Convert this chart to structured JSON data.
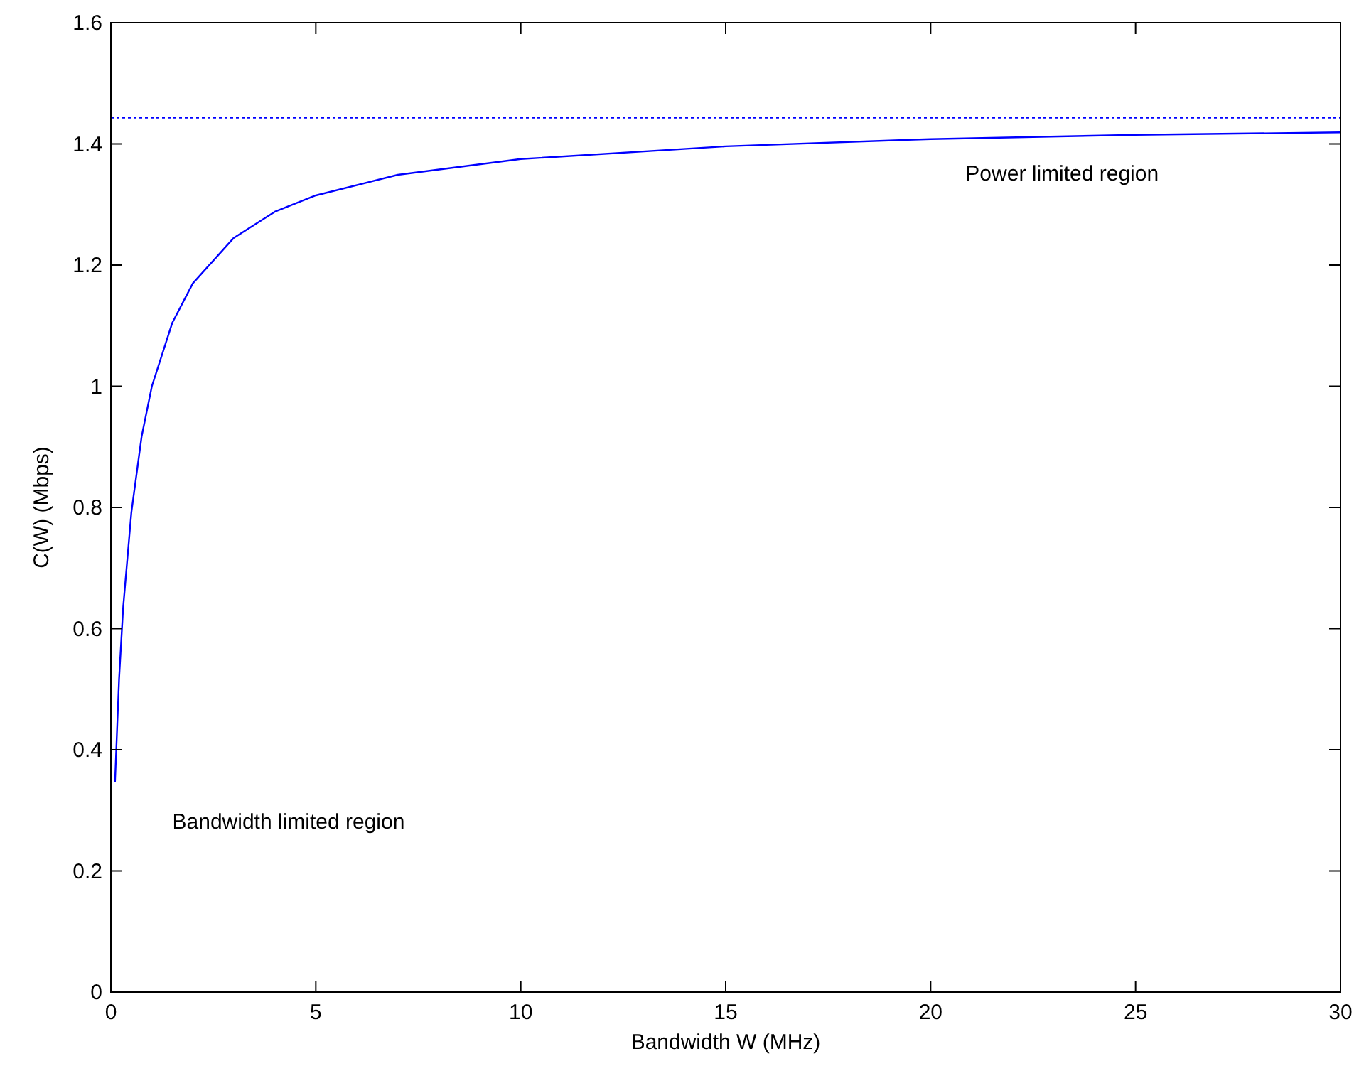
{
  "chart_data": {
    "type": "line",
    "xlabel": "Bandwidth W (MHz)",
    "ylabel": "C(W) (Mbps)",
    "x": [
      0.1,
      0.2,
      0.3,
      0.5,
      0.75,
      1,
      1.5,
      2,
      3,
      4,
      5,
      7,
      10,
      15,
      20,
      25,
      30
    ],
    "series": [
      {
        "color": "#0000ff",
        "values": [
          0.346,
          0.517,
          0.635,
          0.792,
          0.917,
          1.0,
          1.105,
          1.17,
          1.245,
          1.288,
          1.315,
          1.349,
          1.375,
          1.396,
          1.408,
          1.415,
          1.419
        ]
      }
    ],
    "xlim": [
      0,
      30
    ],
    "xticks": [
      0,
      5,
      10,
      15,
      20,
      25,
      30
    ],
    "ylim": [
      0,
      1.6
    ],
    "yticks": [
      0,
      0.2,
      0.4,
      0.6,
      0.8,
      1,
      1.2,
      1.4,
      1.6
    ],
    "ref_lines": [
      {
        "axis": "y",
        "value": 1.443,
        "color": "#0000ff",
        "line_style": "dotted"
      }
    ],
    "annotations": [
      "Power limited region",
      "Bandwidth limited region"
    ],
    "grid": false,
    "marker": "none",
    "line_style": "solid"
  }
}
